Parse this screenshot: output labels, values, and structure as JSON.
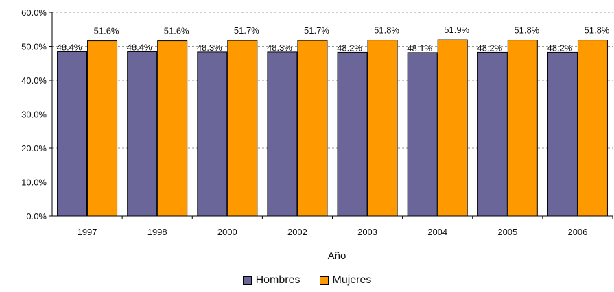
{
  "chart_data": {
    "type": "bar",
    "categories": [
      "1997",
      "1998",
      "2000",
      "2002",
      "2003",
      "2004",
      "2005",
      "2006"
    ],
    "series": [
      {
        "name": "Hombres",
        "color": "#6b6699",
        "values": [
          48.4,
          48.4,
          48.3,
          48.3,
          48.2,
          48.1,
          48.2,
          48.2
        ],
        "labels": [
          "48.4%",
          "48.4%",
          "48.3%",
          "48.3%",
          "48.2%",
          "48.1%",
          "48.2%",
          "48.2%"
        ]
      },
      {
        "name": "Mujeres",
        "color": "#ff9900",
        "values": [
          51.6,
          51.6,
          51.7,
          51.7,
          51.8,
          51.9,
          51.8,
          51.8
        ],
        "labels": [
          "51.6%",
          "51.6%",
          "51.7%",
          "51.7%",
          "51.8%",
          "51.9%",
          "51.8%",
          "51.8%"
        ]
      }
    ],
    "y_ticks": [
      "0.0%",
      "10.0%",
      "20.0%",
      "30.0%",
      "40.0%",
      "50.0%",
      "60.0%"
    ],
    "ylim": [
      0,
      60
    ],
    "xlabel": "Año",
    "ylabel": "",
    "title": "",
    "grid": true,
    "legend_position": "bottom"
  }
}
